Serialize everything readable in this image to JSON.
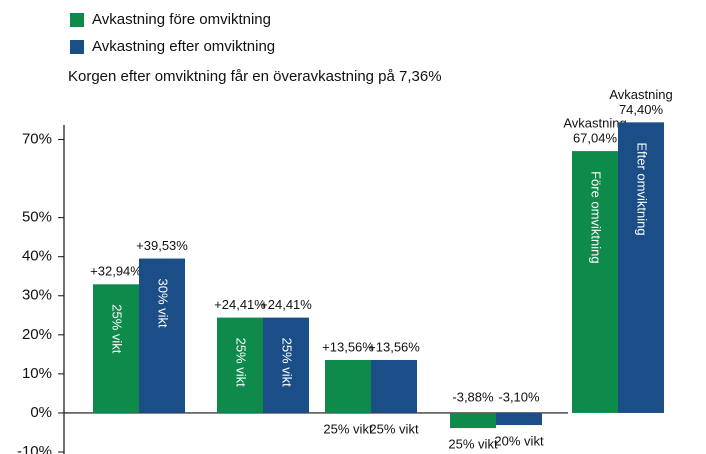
{
  "chart_data": {
    "type": "bar",
    "legend": "top-left",
    "subtitle": "Korgen efter omviktning får en överavkastning på 7,36%",
    "ylim": [
      -10,
      75
    ],
    "yticks": [
      {
        "value": 70,
        "label": "70%"
      },
      {
        "value": 50,
        "label": "50%"
      },
      {
        "value": 40,
        "label": "40%"
      },
      {
        "value": 30,
        "label": "30%"
      },
      {
        "value": 20,
        "label": "20%"
      },
      {
        "value": 10,
        "label": "10%"
      },
      {
        "value": 0,
        "label": "0%"
      },
      {
        "value": -10,
        "label": "-10%"
      }
    ],
    "categories": [
      null,
      null,
      null,
      null,
      null
    ],
    "series": [
      {
        "name": "Avkastning före omviktning",
        "color": "#0e8a4b",
        "values": [
          32.94,
          24.41,
          13.56,
          -3.88,
          67.04
        ],
        "value_labels": [
          "+32,94%",
          "+24,41%",
          "+13,56%",
          "-3,88%",
          "67,04%"
        ],
        "top_labels": [
          null,
          null,
          null,
          null,
          "Avkastning"
        ],
        "notes": [
          "25% vikt",
          "25% vikt",
          "25% vikt",
          "25% vikt",
          "Före omviktning"
        ]
      },
      {
        "name": "Avkastning efter omviktning",
        "color": "#1b4e87",
        "values": [
          39.53,
          24.41,
          13.56,
          -3.1,
          74.4
        ],
        "value_labels": [
          "+39,53%",
          "+24,41%",
          "+13,56%",
          "-3,10%",
          "74,40%"
        ],
        "top_labels": [
          null,
          null,
          null,
          null,
          "Avkastning"
        ],
        "notes": [
          "30% vikt",
          "25% vikt",
          "25% vikt",
          "20% vikt",
          "Efter omviktning"
        ]
      }
    ]
  }
}
